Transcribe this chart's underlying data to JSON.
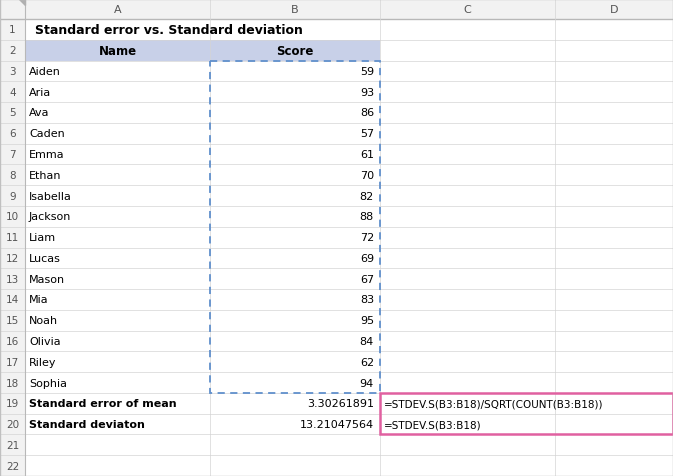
{
  "title": "Standard error vs. Standard deviation",
  "header": [
    "Name",
    "Score"
  ],
  "names": [
    "Aiden",
    "Aria",
    "Ava",
    "Caden",
    "Emma",
    "Ethan",
    "Isabella",
    "Jackson",
    "Liam",
    "Lucas",
    "Mason",
    "Mia",
    "Noah",
    "Olivia",
    "Riley",
    "Sophia"
  ],
  "scores": [
    59,
    93,
    86,
    57,
    61,
    70,
    82,
    88,
    72,
    69,
    67,
    83,
    95,
    84,
    62,
    94
  ],
  "row19_label": "Standard error of mean",
  "row19_value": "3.30261891",
  "row19_formula": "=STDEV.S(B3:B18)/SQRT(COUNT(B3:B18))",
  "row20_label": "Standard deviaton",
  "row20_value": "13.21047564",
  "row20_formula": "=STDEV.S(B3:B18)",
  "header_bg": "#c8d0e8",
  "grid_color": "#d4d4d4",
  "row_num_bg": "#f2f2f2",
  "col_header_bg": "#f2f2f2",
  "formula_border_color": "#e060a0",
  "dashed_border_color": "#6090cc",
  "bg_color": "#ffffff"
}
